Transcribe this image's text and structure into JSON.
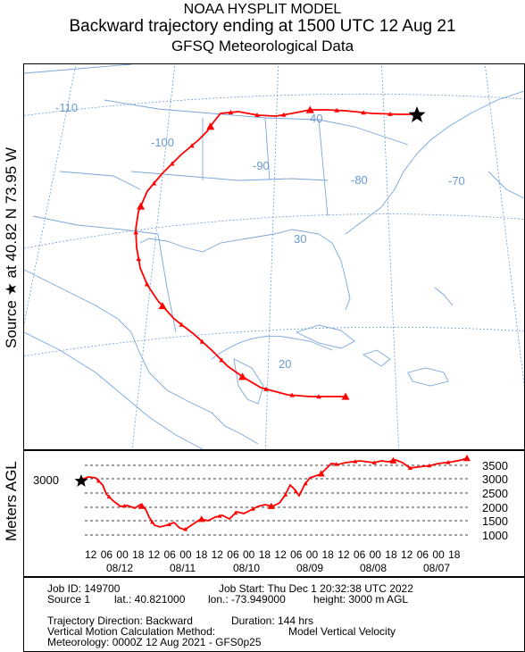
{
  "title": {
    "line1": "NOAA HYSPLIT MODEL",
    "line2": "Backward trajectory ending at 1500 UTC 12 Aug 21",
    "line3": "GFSQ Meteorological Data"
  },
  "side_label": {
    "source": "Source ★  at   40.82 N   73.95 W",
    "meters": "Meters AGL"
  },
  "map": {
    "lon_labels": [
      "-110",
      "-100",
      "-90",
      "-80",
      "-70"
    ],
    "lat_labels": [
      "40",
      "30",
      "20"
    ],
    "colors": {
      "trajectory": "#ff0000",
      "grid": "#6b9bd2",
      "coast": "#7aa6d8"
    },
    "source_marker": "star-icon"
  },
  "profile": {
    "height_label": "3000",
    "y_ticks": [
      "3500",
      "3000",
      "2500",
      "2000",
      "1500",
      "1000"
    ],
    "x_hours": [
      "12",
      "06",
      "00",
      "18",
      "12",
      "06",
      "00",
      "18",
      "12",
      "06",
      "00",
      "18",
      "12",
      "06",
      "00",
      "18",
      "12",
      "06",
      "00",
      "18",
      "12",
      "06",
      "00",
      "18"
    ],
    "dates": [
      "08/12",
      "08/11",
      "08/10",
      "08/09",
      "08/08",
      "08/07"
    ]
  },
  "info": {
    "job_id": "Job ID: 149700",
    "job_start": "Job Start: Thu Dec  1 20:32:38 UTC 2022",
    "source": "Source 1",
    "lat": "lat.: 40.821000",
    "lon": "lon.: -73.949000",
    "height": "height: 3000 m AGL",
    "direction": "Trajectory Direction: Backward",
    "duration": "Duration: 144 hrs",
    "vertical": "Vertical Motion Calculation Method:",
    "vertical_value": "Model Vertical Velocity",
    "meteorology": "Meteorology: 0000Z 12 Aug 2021 - GFS0p25"
  }
}
